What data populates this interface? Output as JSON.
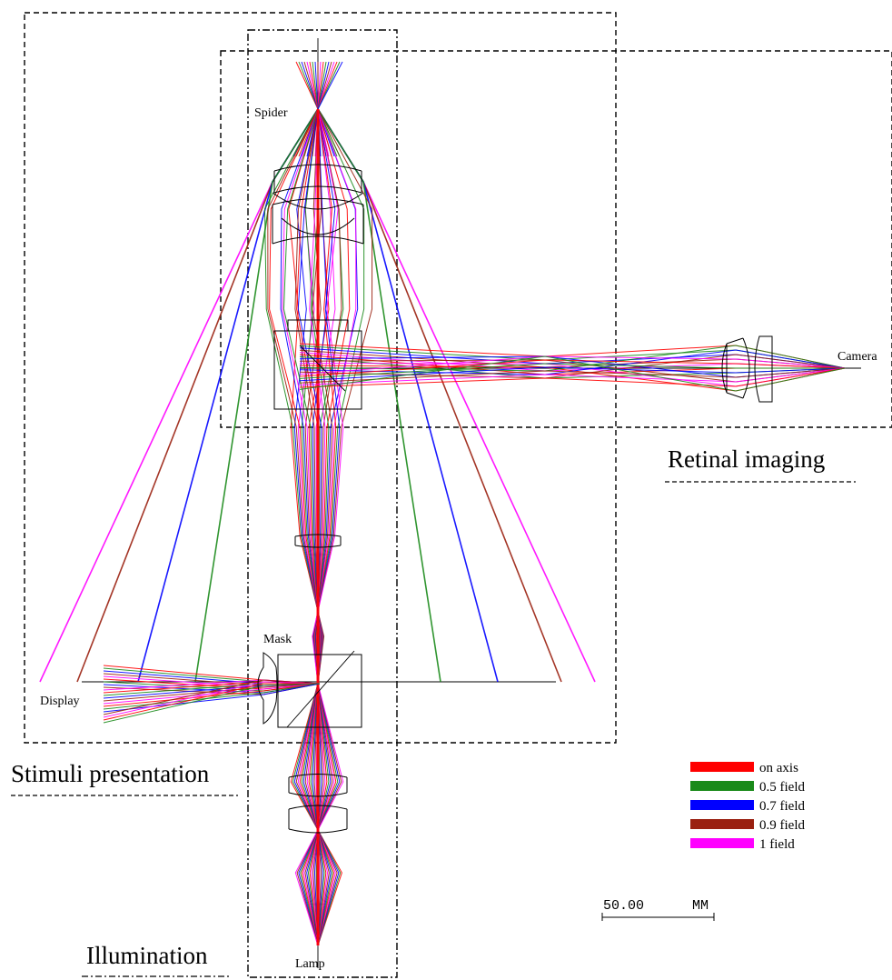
{
  "labels": {
    "spider": "Spider",
    "camera": "Camera",
    "mask": "Mask",
    "display": "Display",
    "lamp": "Lamp"
  },
  "sections": {
    "retinal_imaging": "Retinal imaging",
    "stimuli_presentation": "Stimuli presentation",
    "illumination": "Illumination"
  },
  "legend": [
    {
      "label": "on axis",
      "color": "#ff0000"
    },
    {
      "label": "0.5 field",
      "color": "#1a8a1a"
    },
    {
      "label": "0.7 field",
      "color": "#0000ff"
    },
    {
      "label": "0.9 field",
      "color": "#9a2010"
    },
    {
      "label": "1 field",
      "color": "#ff00ff"
    }
  ],
  "scale_bar": {
    "value": "50.00",
    "unit": "MM"
  }
}
